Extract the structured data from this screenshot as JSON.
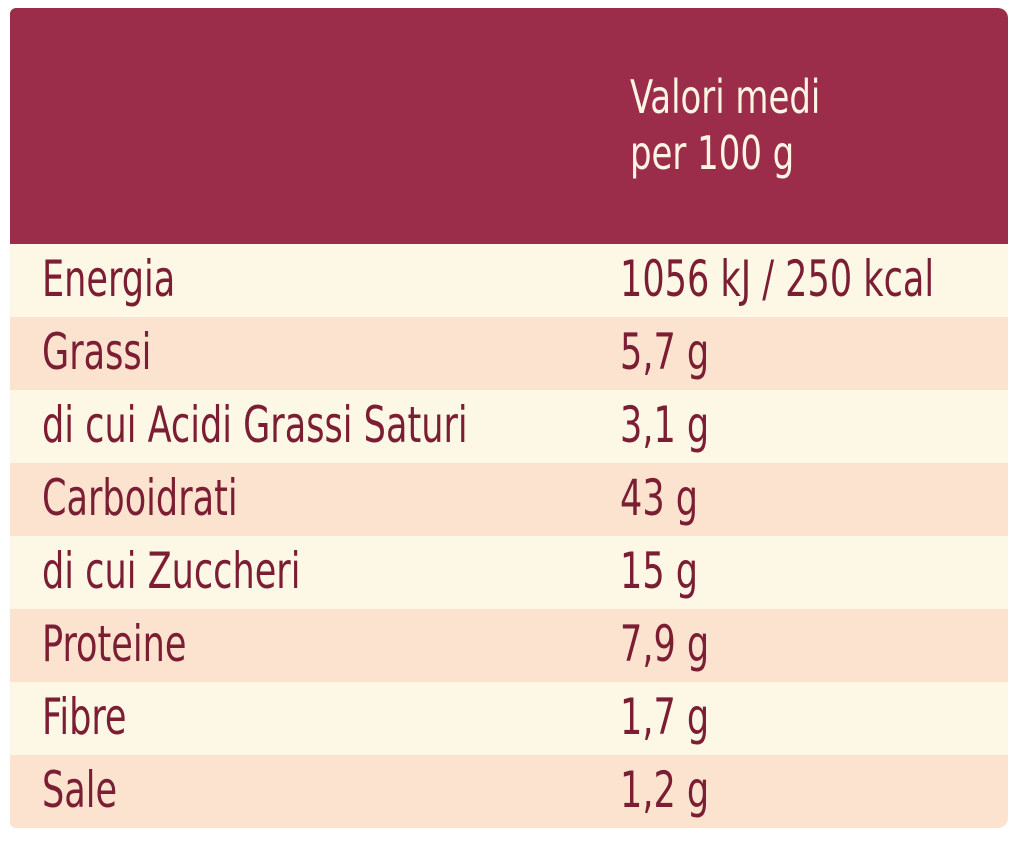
{
  "table": {
    "header": [
      "Valori medi",
      "per 100 g"
    ],
    "rows": [
      [
        "Energia",
        "1056 kJ / 250 kcal"
      ],
      [
        "Grassi",
        "5,7 g"
      ],
      [
        "di cui Acidi Grassi Saturi",
        "3,1 g"
      ],
      [
        "Carboidrati",
        "43 g"
      ],
      [
        "di cui Zuccheri",
        "15 g"
      ],
      [
        "Proteine",
        "7,9 g"
      ],
      [
        "Fibre",
        "1,7 g"
      ],
      [
        "Sale",
        "1,2 g"
      ]
    ]
  }
}
